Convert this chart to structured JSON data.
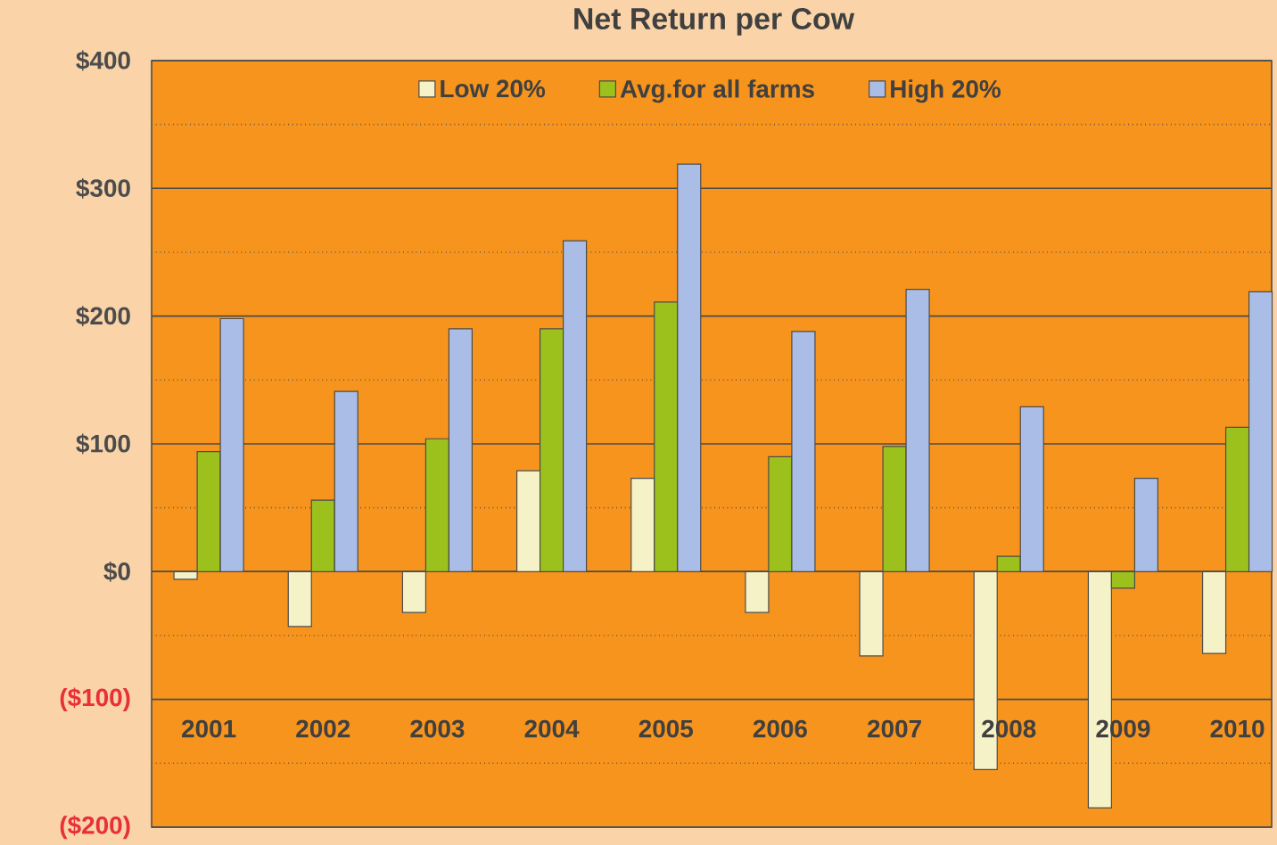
{
  "chart_data": {
    "type": "bar",
    "title": "Net Return per Cow",
    "categories": [
      "2001",
      "2002",
      "2003",
      "2004",
      "2005",
      "2006",
      "2007",
      "2008",
      "2009",
      "2010"
    ],
    "series": [
      {
        "name": "Low 20%",
        "color": "#f5f2c8",
        "values": [
          -6,
          -43,
          -32,
          79,
          73,
          -32,
          -66,
          -155,
          -185,
          -64
        ]
      },
      {
        "name": "Avg.for all farms",
        "color": "#9cc11c",
        "values": [
          94,
          56,
          104,
          190,
          211,
          90,
          98,
          12,
          -13,
          113
        ]
      },
      {
        "name": "High 20%",
        "color": "#a9bde6",
        "values": [
          198,
          141,
          190,
          259,
          319,
          188,
          221,
          129,
          73,
          219
        ]
      }
    ],
    "ylim": [
      -200,
      400
    ],
    "yticks": [
      {
        "value": -200,
        "label": "($200)"
      },
      {
        "value": -100,
        "label": "($100)"
      },
      {
        "value": 0,
        "label": "$0"
      },
      {
        "value": 100,
        "label": "$100"
      },
      {
        "value": 200,
        "label": "$200"
      },
      {
        "value": 300,
        "label": "$300"
      },
      {
        "value": 400,
        "label": "$400"
      }
    ],
    "grid": true,
    "legend": "top"
  }
}
